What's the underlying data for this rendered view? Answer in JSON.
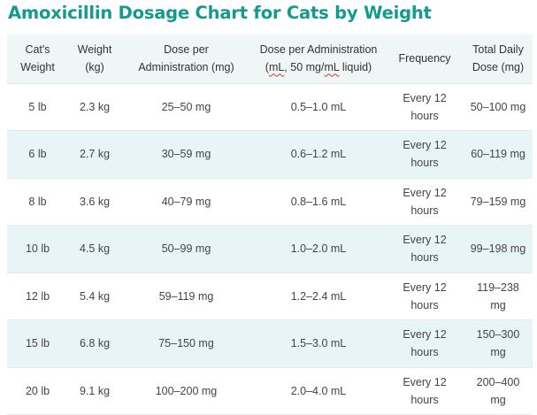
{
  "title": "Amoxicillin Dosage Chart for Cats by Weight",
  "table": {
    "headers": {
      "weight_lb": [
        "Cat's",
        "Weight"
      ],
      "weight_kg": [
        "Weight",
        "(kg)"
      ],
      "dose_mg": [
        "Dose per",
        "Administration (mg)"
      ],
      "dose_ml_line1": "Dose per Administration",
      "dose_ml_pre": "(",
      "dose_ml_underlined1": "mL",
      "dose_ml_mid": ", 50 mg/",
      "dose_ml_underlined2": "mL",
      "dose_ml_post": " liquid)",
      "frequency": "Frequency",
      "total": [
        "Total Daily",
        "Dose (mg)"
      ]
    },
    "rows": [
      {
        "weight_lb": "5 lb",
        "weight_kg": "2.3 kg",
        "dose_mg": "25–50 mg",
        "dose_ml": "0.5–1.0 mL",
        "frequency": [
          "Every 12",
          "hours"
        ],
        "total": [
          "50–100 mg"
        ]
      },
      {
        "weight_lb": "6 lb",
        "weight_kg": "2.7 kg",
        "dose_mg": "30–59 mg",
        "dose_ml": "0.6–1.2 mL",
        "frequency": [
          "Every 12",
          "hours"
        ],
        "total": [
          "60–119 mg"
        ]
      },
      {
        "weight_lb": "8 lb",
        "weight_kg": "3.6 kg",
        "dose_mg": "40–79 mg",
        "dose_ml": "0.8–1.6 mL",
        "frequency": [
          "Every 12",
          "hours"
        ],
        "total": [
          "79–159 mg"
        ]
      },
      {
        "weight_lb": "10 lb",
        "weight_kg": "4.5 kg",
        "dose_mg": "50–99 mg",
        "dose_ml": "1.0–2.0 mL",
        "frequency": [
          "Every 12",
          "hours"
        ],
        "total": [
          "99–198 mg"
        ]
      },
      {
        "weight_lb": "12 lb",
        "weight_kg": "5.4 kg",
        "dose_mg": "59–119 mg",
        "dose_ml": "1.2–2.4 mL",
        "frequency": [
          "Every 12",
          "hours"
        ],
        "total": [
          "119–238",
          "mg"
        ]
      },
      {
        "weight_lb": "15 lb",
        "weight_kg": "6.8 kg",
        "dose_mg": "75–150 mg",
        "dose_ml": "1.5–3.0 mL",
        "frequency": [
          "Every 12",
          "hours"
        ],
        "total": [
          "150–300",
          "mg"
        ]
      },
      {
        "weight_lb": "20 lb",
        "weight_kg": "9.1 kg",
        "dose_mg": "100–200 mg",
        "dose_ml": "2.0–4.0 mL",
        "frequency": [
          "Every 12",
          "hours"
        ],
        "total": [
          "200–400",
          "mg"
        ]
      }
    ]
  }
}
